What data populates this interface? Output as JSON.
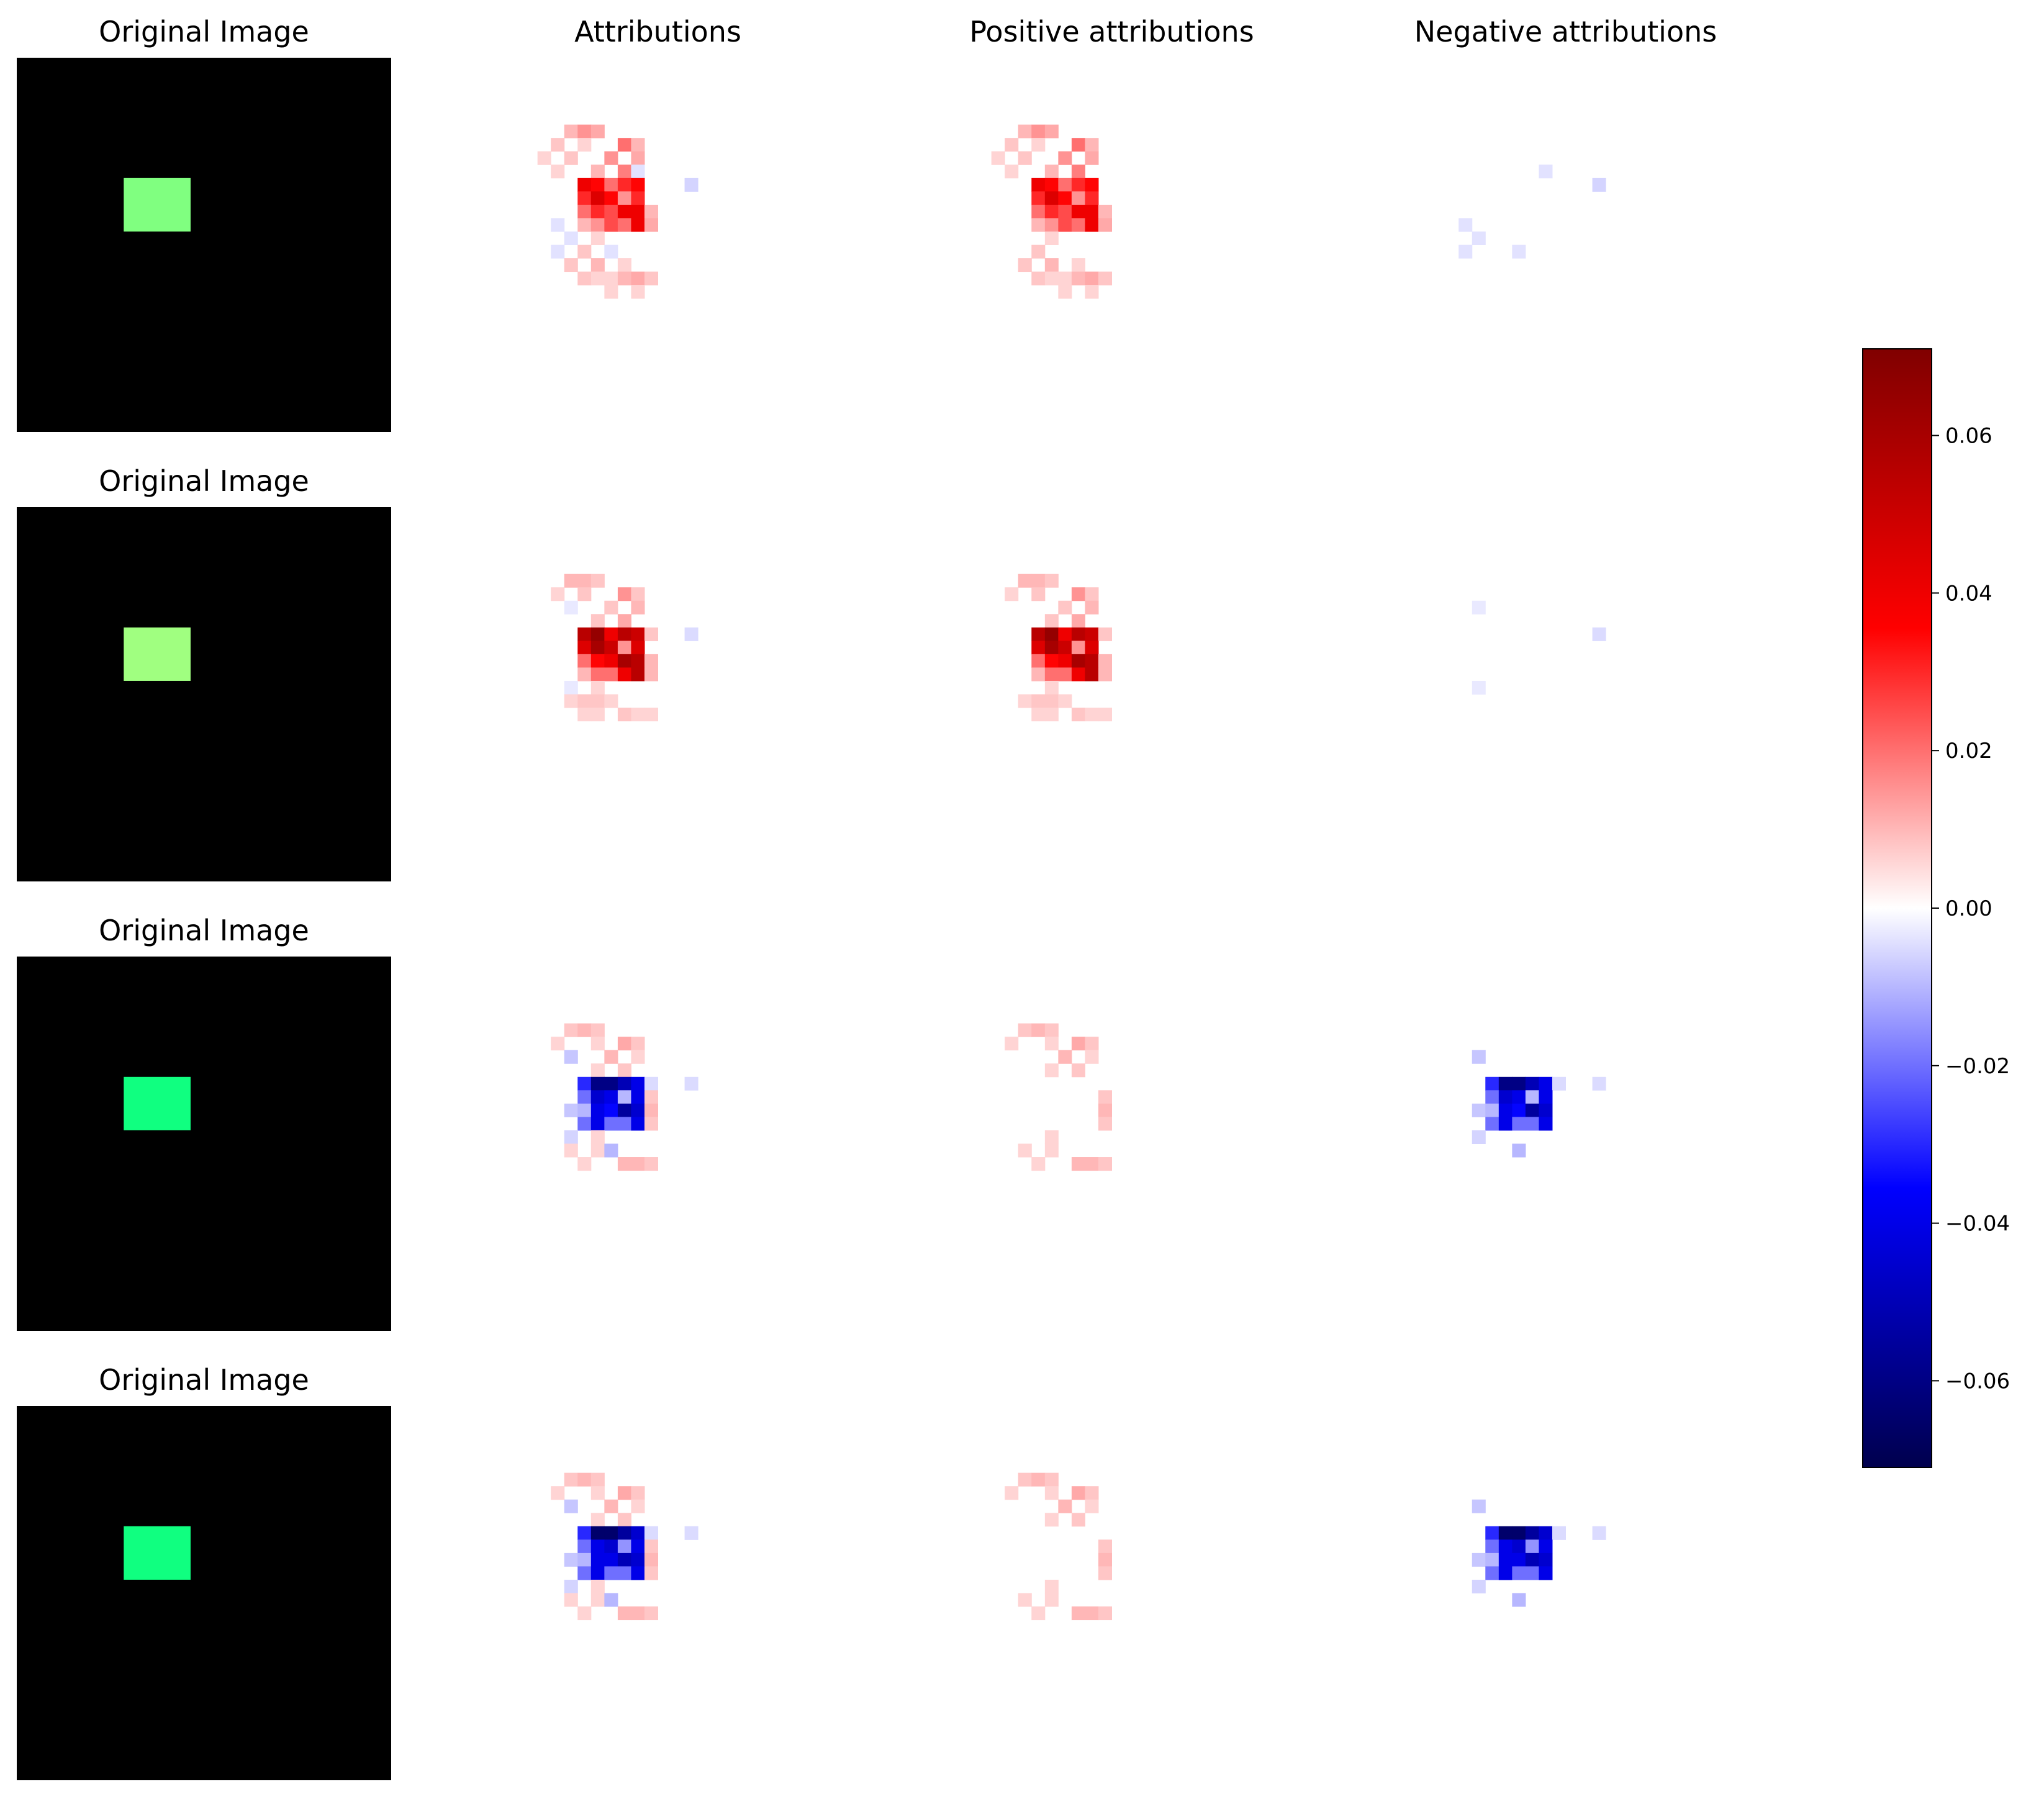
{
  "chart_data": {
    "type": "heatmap",
    "grid_size": 28,
    "columns": [
      "Original Image",
      "Attributions",
      "Positive attributions",
      "Negative attributions"
    ],
    "rows": [
      {
        "original": {
          "background": "#000000",
          "square_color": "#80ff80",
          "square_rows": [
            9,
            12
          ],
          "square_cols": [
            8,
            12
          ]
        },
        "attributions": [
          {
            "r": 5,
            "c": 7,
            "v": 0.01
          },
          {
            "r": 5,
            "c": 8,
            "v": 0.015
          },
          {
            "r": 5,
            "c": 9,
            "v": 0.012
          },
          {
            "r": 6,
            "c": 6,
            "v": 0.008
          },
          {
            "r": 6,
            "c": 8,
            "v": 0.006
          },
          {
            "r": 6,
            "c": 11,
            "v": 0.02
          },
          {
            "r": 6,
            "c": 12,
            "v": 0.01
          },
          {
            "r": 7,
            "c": 5,
            "v": 0.006
          },
          {
            "r": 7,
            "c": 7,
            "v": 0.008
          },
          {
            "r": 7,
            "c": 10,
            "v": 0.015
          },
          {
            "r": 7,
            "c": 12,
            "v": 0.012
          },
          {
            "r": 8,
            "c": 6,
            "v": 0.006
          },
          {
            "r": 8,
            "c": 9,
            "v": 0.01
          },
          {
            "r": 8,
            "c": 11,
            "v": 0.018
          },
          {
            "r": 8,
            "c": 12,
            "v": -0.004
          },
          {
            "r": 9,
            "c": 8,
            "v": 0.04
          },
          {
            "r": 9,
            "c": 9,
            "v": 0.035
          },
          {
            "r": 9,
            "c": 10,
            "v": 0.02
          },
          {
            "r": 9,
            "c": 11,
            "v": 0.03
          },
          {
            "r": 9,
            "c": 12,
            "v": 0.035
          },
          {
            "r": 9,
            "c": 16,
            "v": -0.006
          },
          {
            "r": 10,
            "c": 8,
            "v": 0.03
          },
          {
            "r": 10,
            "c": 9,
            "v": 0.045
          },
          {
            "r": 10,
            "c": 10,
            "v": 0.035
          },
          {
            "r": 10,
            "c": 11,
            "v": 0.015
          },
          {
            "r": 10,
            "c": 12,
            "v": 0.03
          },
          {
            "r": 11,
            "c": 8,
            "v": 0.02
          },
          {
            "r": 11,
            "c": 9,
            "v": 0.03
          },
          {
            "r": 11,
            "c": 10,
            "v": 0.025
          },
          {
            "r": 11,
            "c": 11,
            "v": 0.04
          },
          {
            "r": 11,
            "c": 12,
            "v": 0.04
          },
          {
            "r": 11,
            "c": 13,
            "v": 0.01
          },
          {
            "r": 12,
            "c": 6,
            "v": -0.004
          },
          {
            "r": 12,
            "c": 8,
            "v": 0.01
          },
          {
            "r": 12,
            "c": 9,
            "v": 0.015
          },
          {
            "r": 12,
            "c": 10,
            "v": 0.025
          },
          {
            "r": 12,
            "c": 11,
            "v": 0.02
          },
          {
            "r": 12,
            "c": 12,
            "v": 0.04
          },
          {
            "r": 12,
            "c": 13,
            "v": 0.012
          },
          {
            "r": 13,
            "c": 7,
            "v": -0.004
          },
          {
            "r": 13,
            "c": 9,
            "v": 0.006
          },
          {
            "r": 14,
            "c": 6,
            "v": -0.004
          },
          {
            "r": 14,
            "c": 8,
            "v": 0.008
          },
          {
            "r": 14,
            "c": 10,
            "v": -0.004
          },
          {
            "r": 15,
            "c": 7,
            "v": 0.008
          },
          {
            "r": 15,
            "c": 9,
            "v": 0.01
          },
          {
            "r": 15,
            "c": 11,
            "v": 0.006
          },
          {
            "r": 16,
            "c": 8,
            "v": 0.008
          },
          {
            "r": 16,
            "c": 9,
            "v": 0.006
          },
          {
            "r": 16,
            "c": 10,
            "v": 0.006
          },
          {
            "r": 16,
            "c": 11,
            "v": 0.01
          },
          {
            "r": 16,
            "c": 12,
            "v": 0.012
          },
          {
            "r": 16,
            "c": 13,
            "v": 0.008
          },
          {
            "r": 17,
            "c": 10,
            "v": 0.006
          },
          {
            "r": 17,
            "c": 12,
            "v": 0.006
          }
        ]
      },
      {
        "original": {
          "background": "#000000",
          "square_color": "#a0ff80",
          "square_rows": [
            9,
            12
          ],
          "square_cols": [
            8,
            12
          ]
        },
        "attributions": [
          {
            "r": 5,
            "c": 7,
            "v": 0.01
          },
          {
            "r": 5,
            "c": 8,
            "v": 0.01
          },
          {
            "r": 5,
            "c": 9,
            "v": 0.008
          },
          {
            "r": 6,
            "c": 6,
            "v": 0.006
          },
          {
            "r": 6,
            "c": 8,
            "v": 0.008
          },
          {
            "r": 6,
            "c": 11,
            "v": 0.015
          },
          {
            "r": 6,
            "c": 12,
            "v": 0.008
          },
          {
            "r": 7,
            "c": 7,
            "v": -0.003
          },
          {
            "r": 7,
            "c": 10,
            "v": 0.008
          },
          {
            "r": 7,
            "c": 12,
            "v": 0.01
          },
          {
            "r": 8,
            "c": 9,
            "v": 0.008
          },
          {
            "r": 8,
            "c": 11,
            "v": 0.012
          },
          {
            "r": 9,
            "c": 8,
            "v": 0.055
          },
          {
            "r": 9,
            "c": 9,
            "v": 0.065
          },
          {
            "r": 9,
            "c": 10,
            "v": 0.04
          },
          {
            "r": 9,
            "c": 11,
            "v": 0.055
          },
          {
            "r": 9,
            "c": 12,
            "v": 0.05
          },
          {
            "r": 9,
            "c": 13,
            "v": 0.008
          },
          {
            "r": 9,
            "c": 16,
            "v": -0.005
          },
          {
            "r": 10,
            "c": 8,
            "v": 0.045
          },
          {
            "r": 10,
            "c": 9,
            "v": 0.06
          },
          {
            "r": 10,
            "c": 10,
            "v": 0.05
          },
          {
            "r": 10,
            "c": 11,
            "v": 0.015
          },
          {
            "r": 10,
            "c": 12,
            "v": 0.045
          },
          {
            "r": 11,
            "c": 8,
            "v": 0.02
          },
          {
            "r": 11,
            "c": 9,
            "v": 0.035
          },
          {
            "r": 11,
            "c": 10,
            "v": 0.04
          },
          {
            "r": 11,
            "c": 11,
            "v": 0.06
          },
          {
            "r": 11,
            "c": 12,
            "v": 0.055
          },
          {
            "r": 11,
            "c": 13,
            "v": 0.01
          },
          {
            "r": 12,
            "c": 8,
            "v": 0.01
          },
          {
            "r": 12,
            "c": 9,
            "v": 0.02
          },
          {
            "r": 12,
            "c": 10,
            "v": 0.02
          },
          {
            "r": 12,
            "c": 11,
            "v": 0.04
          },
          {
            "r": 12,
            "c": 12,
            "v": 0.055
          },
          {
            "r": 12,
            "c": 13,
            "v": 0.01
          },
          {
            "r": 13,
            "c": 7,
            "v": -0.003
          },
          {
            "r": 13,
            "c": 9,
            "v": 0.006
          },
          {
            "r": 14,
            "c": 7,
            "v": 0.006
          },
          {
            "r": 14,
            "c": 8,
            "v": 0.008
          },
          {
            "r": 14,
            "c": 9,
            "v": 0.008
          },
          {
            "r": 14,
            "c": 10,
            "v": 0.006
          },
          {
            "r": 15,
            "c": 8,
            "v": 0.006
          },
          {
            "r": 15,
            "c": 9,
            "v": 0.006
          },
          {
            "r": 15,
            "c": 11,
            "v": 0.008
          },
          {
            "r": 15,
            "c": 12,
            "v": 0.006
          },
          {
            "r": 15,
            "c": 13,
            "v": 0.006
          }
        ]
      },
      {
        "original": {
          "background": "#000000",
          "square_color": "#10ff80",
          "square_rows": [
            9,
            12
          ],
          "square_cols": [
            8,
            12
          ]
        },
        "attributions": [
          {
            "r": 5,
            "c": 7,
            "v": 0.008
          },
          {
            "r": 5,
            "c": 8,
            "v": 0.01
          },
          {
            "r": 5,
            "c": 9,
            "v": 0.008
          },
          {
            "r": 6,
            "c": 6,
            "v": 0.006
          },
          {
            "r": 6,
            "c": 9,
            "v": 0.006
          },
          {
            "r": 6,
            "c": 11,
            "v": 0.012
          },
          {
            "r": 6,
            "c": 12,
            "v": 0.008
          },
          {
            "r": 7,
            "c": 7,
            "v": -0.008
          },
          {
            "r": 7,
            "c": 10,
            "v": 0.01
          },
          {
            "r": 7,
            "c": 12,
            "v": 0.006
          },
          {
            "r": 8,
            "c": 9,
            "v": 0.006
          },
          {
            "r": 8,
            "c": 11,
            "v": 0.008
          },
          {
            "r": 9,
            "c": 8,
            "v": -0.03
          },
          {
            "r": 9,
            "c": 9,
            "v": -0.06
          },
          {
            "r": 9,
            "c": 10,
            "v": -0.06
          },
          {
            "r": 9,
            "c": 11,
            "v": -0.05
          },
          {
            "r": 9,
            "c": 12,
            "v": -0.04
          },
          {
            "r": 9,
            "c": 13,
            "v": -0.005
          },
          {
            "r": 9,
            "c": 16,
            "v": -0.005
          },
          {
            "r": 10,
            "c": 8,
            "v": -0.02
          },
          {
            "r": 10,
            "c": 9,
            "v": -0.045
          },
          {
            "r": 10,
            "c": 10,
            "v": -0.04
          },
          {
            "r": 10,
            "c": 11,
            "v": -0.01
          },
          {
            "r": 10,
            "c": 12,
            "v": -0.04
          },
          {
            "r": 10,
            "c": 13,
            "v": 0.008
          },
          {
            "r": 11,
            "c": 7,
            "v": -0.008
          },
          {
            "r": 11,
            "c": 8,
            "v": -0.01
          },
          {
            "r": 11,
            "c": 9,
            "v": -0.04
          },
          {
            "r": 11,
            "c": 10,
            "v": -0.035
          },
          {
            "r": 11,
            "c": 11,
            "v": -0.055
          },
          {
            "r": 11,
            "c": 12,
            "v": -0.045
          },
          {
            "r": 11,
            "c": 13,
            "v": 0.01
          },
          {
            "r": 12,
            "c": 8,
            "v": -0.02
          },
          {
            "r": 12,
            "c": 9,
            "v": -0.04
          },
          {
            "r": 12,
            "c": 10,
            "v": -0.02
          },
          {
            "r": 12,
            "c": 11,
            "v": -0.02
          },
          {
            "r": 12,
            "c": 12,
            "v": -0.04
          },
          {
            "r": 12,
            "c": 13,
            "v": 0.008
          },
          {
            "r": 13,
            "c": 7,
            "v": -0.006
          },
          {
            "r": 13,
            "c": 9,
            "v": 0.006
          },
          {
            "r": 14,
            "c": 7,
            "v": 0.006
          },
          {
            "r": 14,
            "c": 9,
            "v": 0.006
          },
          {
            "r": 14,
            "c": 10,
            "v": -0.01
          },
          {
            "r": 15,
            "c": 8,
            "v": 0.006
          },
          {
            "r": 15,
            "c": 11,
            "v": 0.01
          },
          {
            "r": 15,
            "c": 12,
            "v": 0.01
          },
          {
            "r": 15,
            "c": 13,
            "v": 0.008
          }
        ]
      },
      {
        "original": {
          "background": "#000000",
          "square_color": "#10ff80",
          "square_rows": [
            9,
            12
          ],
          "square_cols": [
            8,
            12
          ]
        },
        "attributions": [
          {
            "r": 5,
            "c": 7,
            "v": 0.008
          },
          {
            "r": 5,
            "c": 8,
            "v": 0.01
          },
          {
            "r": 5,
            "c": 9,
            "v": 0.008
          },
          {
            "r": 6,
            "c": 6,
            "v": 0.006
          },
          {
            "r": 6,
            "c": 9,
            "v": 0.006
          },
          {
            "r": 6,
            "c": 11,
            "v": 0.012
          },
          {
            "r": 6,
            "c": 12,
            "v": 0.008
          },
          {
            "r": 7,
            "c": 7,
            "v": -0.008
          },
          {
            "r": 7,
            "c": 10,
            "v": 0.01
          },
          {
            "r": 7,
            "c": 12,
            "v": 0.006
          },
          {
            "r": 8,
            "c": 9,
            "v": 0.006
          },
          {
            "r": 8,
            "c": 11,
            "v": 0.008
          },
          {
            "r": 9,
            "c": 8,
            "v": -0.03
          },
          {
            "r": 9,
            "c": 9,
            "v": -0.065
          },
          {
            "r": 9,
            "c": 10,
            "v": -0.065
          },
          {
            "r": 9,
            "c": 11,
            "v": -0.055
          },
          {
            "r": 9,
            "c": 12,
            "v": -0.045
          },
          {
            "r": 9,
            "c": 13,
            "v": -0.005
          },
          {
            "r": 9,
            "c": 16,
            "v": -0.005
          },
          {
            "r": 10,
            "c": 8,
            "v": -0.02
          },
          {
            "r": 10,
            "c": 9,
            "v": -0.04
          },
          {
            "r": 10,
            "c": 10,
            "v": -0.045
          },
          {
            "r": 10,
            "c": 11,
            "v": -0.015
          },
          {
            "r": 10,
            "c": 12,
            "v": -0.04
          },
          {
            "r": 10,
            "c": 13,
            "v": 0.008
          },
          {
            "r": 11,
            "c": 7,
            "v": -0.008
          },
          {
            "r": 11,
            "c": 8,
            "v": -0.01
          },
          {
            "r": 11,
            "c": 9,
            "v": -0.04
          },
          {
            "r": 11,
            "c": 10,
            "v": -0.04
          },
          {
            "r": 11,
            "c": 11,
            "v": -0.05
          },
          {
            "r": 11,
            "c": 12,
            "v": -0.045
          },
          {
            "r": 11,
            "c": 13,
            "v": 0.01
          },
          {
            "r": 12,
            "c": 8,
            "v": -0.02
          },
          {
            "r": 12,
            "c": 9,
            "v": -0.04
          },
          {
            "r": 12,
            "c": 10,
            "v": -0.02
          },
          {
            "r": 12,
            "c": 11,
            "v": -0.02
          },
          {
            "r": 12,
            "c": 12,
            "v": -0.04
          },
          {
            "r": 12,
            "c": 13,
            "v": 0.008
          },
          {
            "r": 13,
            "c": 7,
            "v": -0.006
          },
          {
            "r": 13,
            "c": 9,
            "v": 0.006
          },
          {
            "r": 14,
            "c": 7,
            "v": 0.006
          },
          {
            "r": 14,
            "c": 9,
            "v": 0.006
          },
          {
            "r": 14,
            "c": 10,
            "v": -0.01
          },
          {
            "r": 15,
            "c": 8,
            "v": 0.006
          },
          {
            "r": 15,
            "c": 11,
            "v": 0.01
          },
          {
            "r": 15,
            "c": 12,
            "v": 0.01
          },
          {
            "r": 15,
            "c": 13,
            "v": 0.008
          }
        ]
      }
    ],
    "colorbar": {
      "colormap": "seismic",
      "range": [
        -0.071,
        0.071
      ],
      "ticks": [
        0.06,
        0.04,
        0.02,
        0.0,
        -0.02,
        -0.04,
        -0.06
      ],
      "tick_labels": [
        "0.06",
        "0.04",
        "0.02",
        "0.00",
        "−0.02",
        "−0.04",
        "−0.06"
      ],
      "colors": [
        "#00004d",
        "#0000ff",
        "#ffffff",
        "#ff0000",
        "#800000"
      ]
    }
  }
}
